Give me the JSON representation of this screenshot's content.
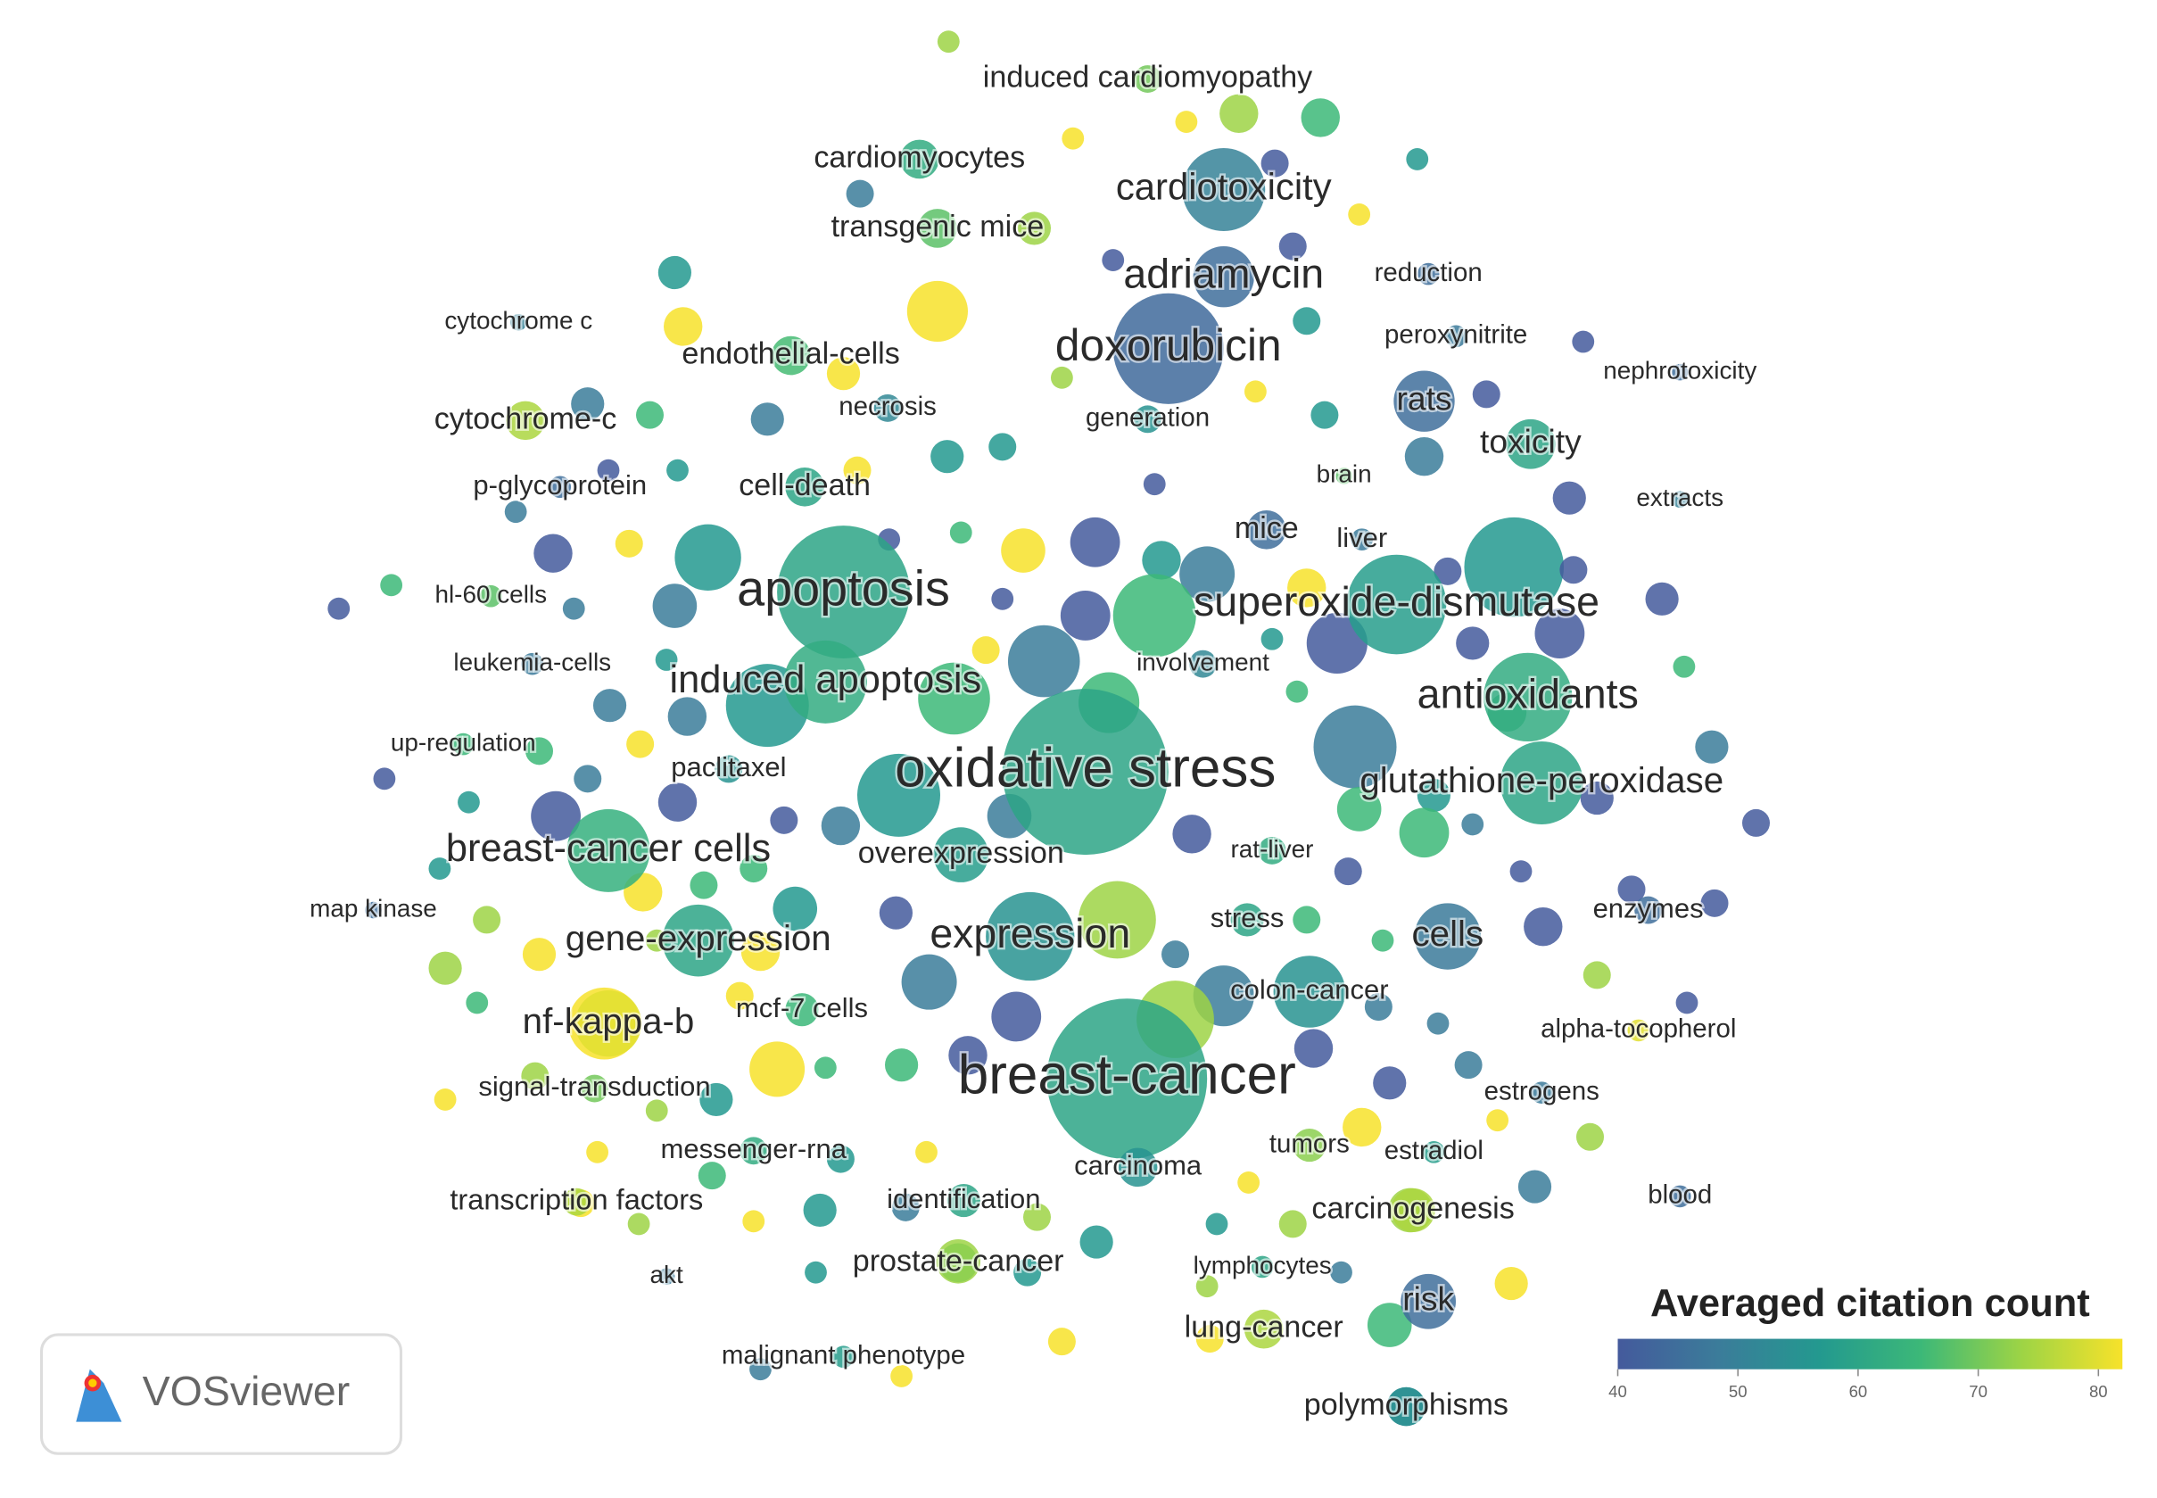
{
  "chart_data": {
    "type": "network",
    "nodes": [
      {
        "label": "induced cardiomyopathy",
        "occurrences": 11,
        "citations": 70
      },
      {
        "label": "cardiomyocytes",
        "occurrences": 22,
        "citations": 62
      },
      {
        "label": "cardiotoxicity",
        "occurrences": 100,
        "citations": 50
      },
      {
        "label": "transgenic mice",
        "occurrences": 22,
        "citations": 68
      },
      {
        "label": "adriamycin",
        "occurrences": 54,
        "citations": 45
      },
      {
        "label": "reduction",
        "occurrences": 7,
        "citations": 45
      },
      {
        "label": "cytochrome c",
        "occurrences": 4,
        "citations": 50
      },
      {
        "label": "endothelial-cells",
        "occurrences": 22,
        "citations": 66
      },
      {
        "label": "doxorubicin",
        "occurrences": 178,
        "citations": 44
      },
      {
        "label": "peroxynitrite",
        "occurrences": 7,
        "citations": 48
      },
      {
        "label": "nephrotoxicity",
        "occurrences": 4,
        "citations": 45
      },
      {
        "label": "cytochrome-c",
        "occurrences": 22,
        "citations": 75
      },
      {
        "label": "necrosis",
        "occurrences": 11,
        "citations": 52
      },
      {
        "label": "generation",
        "occurrences": 11,
        "citations": 55
      },
      {
        "label": "rats",
        "occurrences": 54,
        "citations": 45
      },
      {
        "label": "toxicity",
        "occurrences": 36,
        "citations": 60
      },
      {
        "label": "p-glycoprotein",
        "occurrences": 7,
        "citations": 45
      },
      {
        "label": "cell-death",
        "occurrences": 22,
        "citations": 60
      },
      {
        "label": "brain",
        "occurrences": 4,
        "citations": 68
      },
      {
        "label": "extracts",
        "occurrences": 4,
        "citations": 50
      },
      {
        "label": "mice",
        "occurrences": 22,
        "citations": 45
      },
      {
        "label": "liver",
        "occurrences": 7,
        "citations": 48
      },
      {
        "label": "apoptosis",
        "occurrences": 256,
        "citations": 60
      },
      {
        "label": "hl-60 cells",
        "occurrences": 7,
        "citations": 68
      },
      {
        "label": "superoxide-dismutase",
        "occurrences": 144,
        "citations": 58
      },
      {
        "label": "leukemia-cells",
        "occurrences": 7,
        "citations": 48
      },
      {
        "label": "induced apoptosis",
        "occurrences": 100,
        "citations": 62
      },
      {
        "label": "involvement",
        "occurrences": 11,
        "citations": 52
      },
      {
        "label": "antioxidants",
        "occurrences": 114,
        "citations": 62
      },
      {
        "label": "up-regulation",
        "occurrences": 7,
        "citations": 65
      },
      {
        "label": "paclitaxel",
        "occurrences": 11,
        "citations": 55
      },
      {
        "label": "oxidative stress",
        "occurrences": 400,
        "citations": 60
      },
      {
        "label": "glutathione-peroxidase",
        "occurrences": 100,
        "citations": 60
      },
      {
        "label": "breast-cancer cells",
        "occurrences": 100,
        "citations": 63
      },
      {
        "label": "overexpression",
        "occurrences": 44,
        "citations": 58
      },
      {
        "label": "rat-liver",
        "occurrences": 11,
        "citations": 62
      },
      {
        "label": "map kinase",
        "occurrences": 4,
        "citations": 45
      },
      {
        "label": "stress",
        "occurrences": 16,
        "citations": 60
      },
      {
        "label": "cells",
        "occurrences": 64,
        "citations": 48
      },
      {
        "label": "enzymes",
        "occurrences": 11,
        "citations": 45
      },
      {
        "label": "gene-expression",
        "occurrences": 75,
        "citations": 60
      },
      {
        "label": "expression",
        "occurrences": 114,
        "citations": 55
      },
      {
        "label": "colon-cancer",
        "occurrences": 75,
        "citations": 55
      },
      {
        "label": "mcf-7 cells",
        "occurrences": 16,
        "citations": 65
      },
      {
        "label": "nf-kappa-b",
        "occurrences": 64,
        "citations": 80
      },
      {
        "label": "alpha-tocopherol",
        "occurrences": 7,
        "citations": 80
      },
      {
        "label": "signal-transduction",
        "occurrences": 11,
        "citations": 70
      },
      {
        "label": "breast-cancer",
        "occurrences": 374,
        "citations": 60
      },
      {
        "label": "estrogens",
        "occurrences": 7,
        "citations": 48
      },
      {
        "label": "messenger-rna",
        "occurrences": 11,
        "citations": 62
      },
      {
        "label": "tumors",
        "occurrences": 16,
        "citations": 72
      },
      {
        "label": "estradiol",
        "occurrences": 7,
        "citations": 58
      },
      {
        "label": "carcinoma",
        "occurrences": 22,
        "citations": 55
      },
      {
        "label": "blood",
        "occurrences": 7,
        "citations": 45
      },
      {
        "label": "transcription factors",
        "occurrences": 11,
        "citations": 75
      },
      {
        "label": "identification",
        "occurrences": 16,
        "citations": 60
      },
      {
        "label": "carcinogenesis",
        "occurrences": 28,
        "citations": 75
      },
      {
        "label": "akt",
        "occurrences": 4,
        "citations": 48
      },
      {
        "label": "prostate-cancer",
        "occurrences": 22,
        "citations": 72
      },
      {
        "label": "lymphocytes",
        "occurrences": 7,
        "citations": 60
      },
      {
        "label": "risk",
        "occurrences": 44,
        "citations": 45
      },
      {
        "label": "lung-cancer",
        "occurrences": 22,
        "citations": 75
      },
      {
        "label": "malignant phenotype",
        "occurrences": 7,
        "citations": 58
      },
      {
        "label": "polymorphisms",
        "occurrences": 22,
        "citations": 55
      }
    ],
    "colorbar": {
      "title": "Averaged citation count",
      "range": [
        40,
        82
      ],
      "ticks": [
        40,
        50,
        60,
        70,
        80
      ]
    }
  },
  "logo": "VOSviewer"
}
